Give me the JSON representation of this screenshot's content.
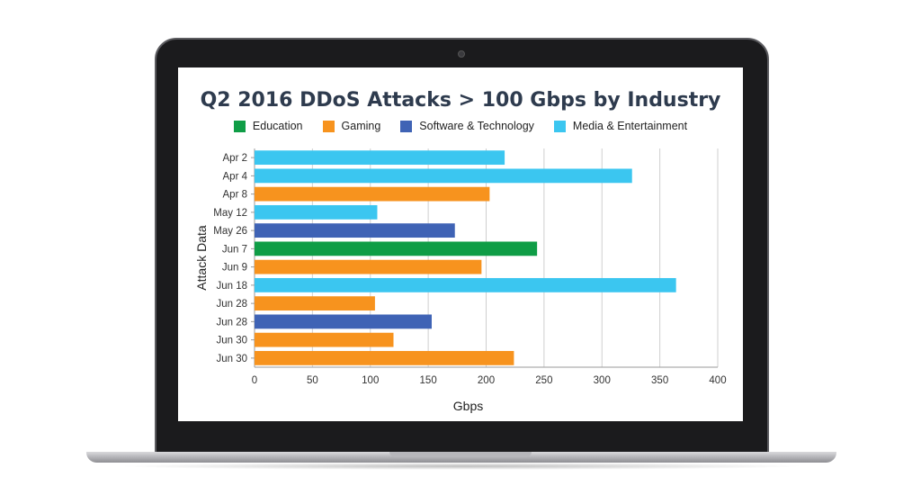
{
  "chart_data": {
    "type": "bar",
    "orientation": "horizontal",
    "title": "Q2 2016 DDoS Attacks > 100 Gbps by Industry",
    "xlabel": "Gbps",
    "ylabel": "Attack Data",
    "xlim": [
      0,
      400
    ],
    "xticks": [
      0,
      50,
      100,
      150,
      200,
      250,
      300,
      350,
      400
    ],
    "grid": true,
    "legend_position": "top",
    "legend": [
      {
        "name": "Education",
        "color": "#0f9d46"
      },
      {
        "name": "Gaming",
        "color": "#f7931e"
      },
      {
        "name": "Software & Technology",
        "color": "#3f63b5"
      },
      {
        "name": "Media & Entertainment",
        "color": "#3bc6f0"
      }
    ],
    "categories": [
      "Apr 2",
      "Apr 4",
      "Apr 8",
      "May 12",
      "May 26",
      "Jun 7",
      "Jun 9",
      "Jun 18",
      "Jun 28",
      "Jun 28",
      "Jun 30",
      "Jun 30"
    ],
    "values": [
      216,
      326,
      203,
      106,
      173,
      244,
      196,
      364,
      104,
      153,
      120,
      224
    ],
    "industries": [
      "Media & Entertainment",
      "Media & Entertainment",
      "Gaming",
      "Media & Entertainment",
      "Software & Technology",
      "Education",
      "Gaming",
      "Media & Entertainment",
      "Gaming",
      "Software & Technology",
      "Gaming",
      "Gaming"
    ]
  }
}
